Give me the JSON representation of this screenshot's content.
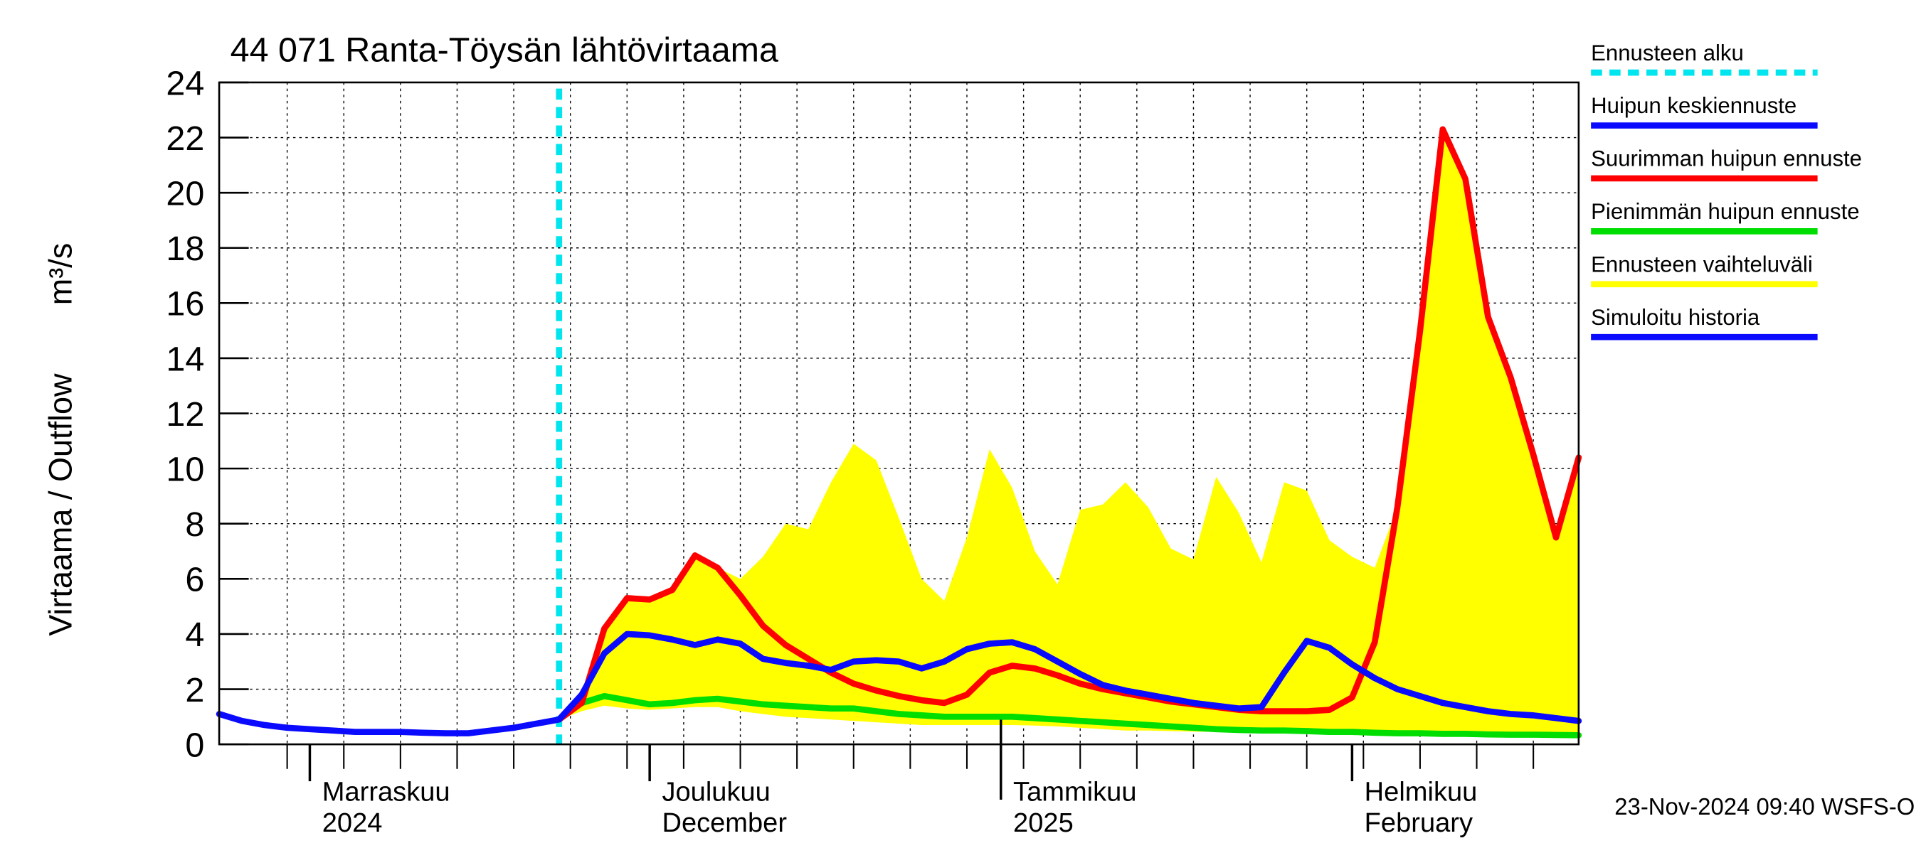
{
  "chart_data": {
    "type": "line",
    "title": "44 071 Ranta-Töysän lähtövirtaama",
    "y_label": "Virtaama / Outflow",
    "y_unit": "m³/s",
    "footer": "23-Nov-2024 09:40 WSFS-O",
    "ylim": [
      0,
      24
    ],
    "yticks": [
      0,
      2,
      4,
      6,
      8,
      10,
      12,
      14,
      16,
      18,
      20,
      22,
      24
    ],
    "xlim": [
      0,
      120
    ],
    "xticks": [
      {
        "value": 8,
        "label": "Marraskuu"
      },
      {
        "value": 38,
        "label": "Joulukuu"
      },
      {
        "value": 69,
        "label": "Tammikuu"
      },
      {
        "value": 100,
        "label": "Helmikuu"
      }
    ],
    "xtick_sublabels": [
      "2024",
      "December",
      "2025",
      "February"
    ],
    "xgrid": [
      6,
      11,
      16,
      21,
      26,
      31,
      36,
      41,
      46,
      51,
      56,
      61,
      66,
      71,
      76,
      81,
      86,
      91,
      96,
      101,
      106,
      111,
      116
    ],
    "grid": true,
    "forecast_start": {
      "name": "Ennusteen alku",
      "color": "#00e5ee",
      "x": 30
    },
    "band": {
      "name": "Ennusteen vaihteluväli",
      "color": "#ffff00",
      "x": [
        30,
        32,
        34,
        36,
        38,
        40,
        42,
        44,
        46,
        48,
        50,
        52,
        54,
        56,
        58,
        60,
        62,
        64,
        66,
        68,
        70,
        72,
        74,
        76,
        78,
        80,
        82,
        84,
        86,
        88,
        90,
        92,
        94,
        96,
        98,
        100,
        102,
        104,
        106,
        108,
        110,
        112,
        114,
        116,
        118,
        120
      ],
      "upper": [
        0.9,
        1.8,
        4.2,
        5.3,
        5.25,
        5.6,
        6.85,
        6.4,
        6.0,
        6.8,
        8.0,
        7.8,
        9.5,
        10.9,
        10.3,
        8.2,
        6.0,
        5.2,
        7.5,
        10.7,
        9.3,
        7.0,
        5.8,
        8.5,
        8.7,
        9.5,
        8.6,
        7.1,
        6.7,
        9.7,
        8.4,
        6.6,
        9.5,
        9.2,
        7.4,
        6.8,
        6.4,
        8.6,
        15,
        22.3,
        20.5,
        15.5,
        13.3,
        10.5,
        7.5,
        10.4
      ],
      "lower": [
        0.9,
        1.2,
        1.4,
        1.3,
        1.25,
        1.3,
        1.35,
        1.35,
        1.2,
        1.1,
        1.0,
        0.95,
        0.9,
        0.85,
        0.8,
        0.75,
        0.7,
        0.7,
        0.7,
        0.7,
        0.7,
        0.68,
        0.65,
        0.6,
        0.55,
        0.5,
        0.5,
        0.48,
        0.46,
        0.45,
        0.44,
        0.43,
        0.42,
        0.4,
        0.4,
        0.4,
        0.38,
        0.36,
        0.35,
        0.34,
        0.33,
        0.32,
        0.31,
        0.3,
        0.3,
        0.3
      ]
    },
    "series": [
      {
        "name": "Huipun keskiennuste",
        "color": "#0a0aff",
        "x": [
          30,
          32,
          34,
          36,
          38,
          40,
          42,
          44,
          46,
          48,
          50,
          52,
          54,
          56,
          58,
          60,
          62,
          64,
          66,
          68,
          70,
          72,
          74,
          76,
          78,
          80,
          82,
          84,
          86,
          88,
          90,
          92,
          94,
          96,
          98,
          100,
          102,
          104,
          106,
          108,
          110,
          112,
          114,
          116,
          118,
          120
        ],
        "values": [
          0.9,
          1.8,
          3.3,
          4.0,
          3.95,
          3.8,
          3.6,
          3.8,
          3.65,
          3.1,
          2.95,
          2.85,
          2.7,
          3.0,
          3.05,
          3.0,
          2.75,
          3.0,
          3.45,
          3.65,
          3.7,
          3.45,
          3.0,
          2.55,
          2.15,
          1.95,
          1.8,
          1.65,
          1.5,
          1.4,
          1.3,
          1.35,
          2.6,
          3.75,
          3.5,
          2.9,
          2.4,
          2.0,
          1.75,
          1.5,
          1.35,
          1.2,
          1.1,
          1.05,
          0.95,
          0.85
        ]
      },
      {
        "name": "Suurimman huipun ennuste",
        "color": "#ff0000",
        "x": [
          30,
          32,
          34,
          36,
          38,
          40,
          42,
          44,
          46,
          48,
          50,
          52,
          54,
          56,
          58,
          60,
          62,
          64,
          66,
          68,
          70,
          72,
          74,
          76,
          78,
          80,
          82,
          84,
          86,
          88,
          90,
          92,
          94,
          96,
          98,
          100,
          102,
          104,
          106,
          108,
          110,
          112,
          114,
          116,
          118,
          120
        ],
        "values": [
          0.9,
          1.5,
          4.2,
          5.3,
          5.25,
          5.6,
          6.85,
          6.4,
          5.4,
          4.3,
          3.6,
          3.1,
          2.6,
          2.2,
          1.95,
          1.75,
          1.6,
          1.5,
          1.8,
          2.6,
          2.85,
          2.75,
          2.5,
          2.2,
          2.0,
          1.85,
          1.7,
          1.55,
          1.45,
          1.35,
          1.25,
          1.2,
          1.2,
          1.2,
          1.25,
          1.7,
          3.7,
          8.6,
          15,
          22.3,
          20.5,
          15.5,
          13.3,
          10.5,
          7.5,
          10.4
        ]
      },
      {
        "name": "Pienimmän huipun ennuste",
        "color": "#00dd00",
        "x": [
          30,
          32,
          34,
          36,
          38,
          40,
          42,
          44,
          46,
          48,
          50,
          52,
          54,
          56,
          58,
          60,
          62,
          64,
          66,
          68,
          70,
          72,
          74,
          76,
          78,
          80,
          82,
          84,
          86,
          88,
          90,
          92,
          94,
          96,
          98,
          100,
          102,
          104,
          106,
          108,
          110,
          112,
          114,
          116,
          118,
          120
        ],
        "values": [
          0.9,
          1.5,
          1.75,
          1.6,
          1.45,
          1.5,
          1.6,
          1.65,
          1.55,
          1.45,
          1.4,
          1.35,
          1.3,
          1.3,
          1.2,
          1.1,
          1.05,
          1.0,
          1.0,
          1.0,
          1.0,
          0.95,
          0.9,
          0.85,
          0.8,
          0.75,
          0.7,
          0.65,
          0.6,
          0.55,
          0.52,
          0.5,
          0.5,
          0.48,
          0.45,
          0.45,
          0.42,
          0.4,
          0.4,
          0.38,
          0.38,
          0.36,
          0.35,
          0.35,
          0.34,
          0.33
        ]
      },
      {
        "name": "Simuloitu historia",
        "color": "#0a0aff",
        "x": [
          0,
          2,
          4,
          6,
          8,
          10,
          12,
          14,
          16,
          18,
          20,
          22,
          24,
          26,
          28,
          30
        ],
        "values": [
          1.1,
          0.85,
          0.7,
          0.6,
          0.55,
          0.5,
          0.45,
          0.45,
          0.45,
          0.42,
          0.4,
          0.4,
          0.5,
          0.6,
          0.75,
          0.9
        ]
      }
    ]
  }
}
